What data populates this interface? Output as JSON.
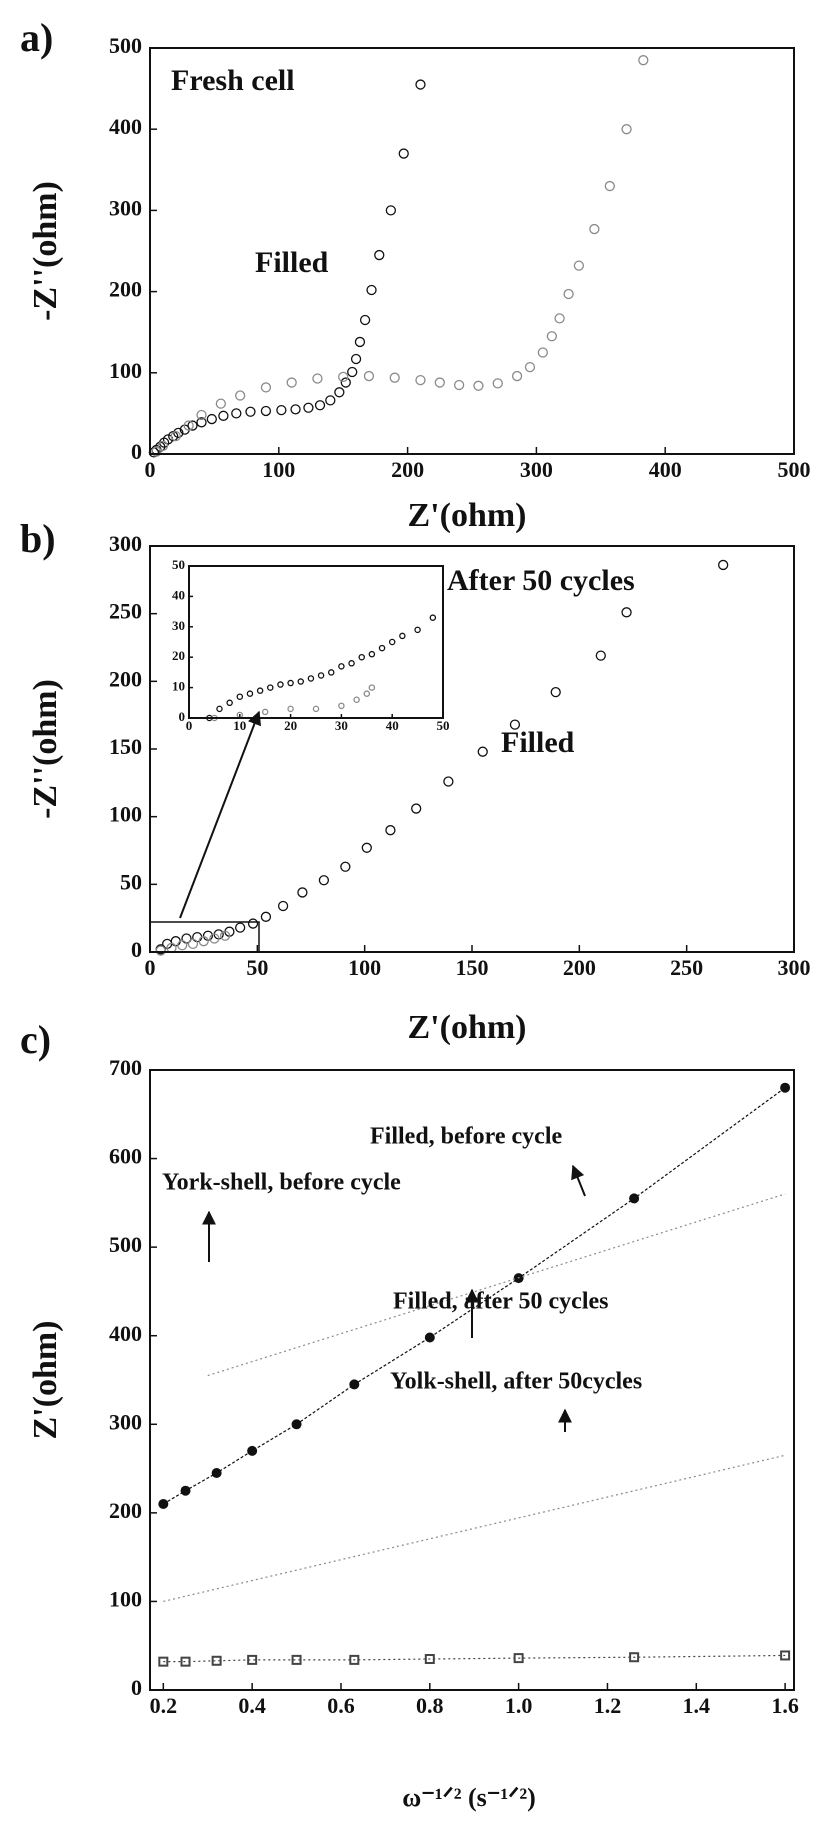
{
  "chart_data": [
    {
      "type": "scatter",
      "panel_label": "a)",
      "x_label": "Z'(ohm)",
      "y_label": "-Z''(ohm)",
      "annotations": [
        "Fresh cell"
      ],
      "xlim": [
        0,
        500
      ],
      "ylim": [
        0,
        500
      ],
      "xticks": [
        0,
        100,
        200,
        300,
        400,
        500
      ],
      "yticks": [
        0,
        100,
        200,
        300,
        400,
        500
      ],
      "series": [
        {
          "name": "Filled",
          "color": "#111111",
          "marker": "circle",
          "x": [
            3,
            5,
            8,
            11,
            14,
            18,
            22,
            27,
            33,
            40,
            48,
            57,
            67,
            78,
            90,
            102,
            113,
            123,
            132,
            140,
            147,
            152,
            157,
            160,
            163,
            167,
            172,
            178,
            187,
            197,
            210
          ],
          "values": [
            2,
            5,
            9,
            14,
            18,
            22,
            26,
            30,
            35,
            39,
            43,
            47,
            50,
            52,
            53,
            54,
            55,
            57,
            60,
            66,
            76,
            88,
            101,
            117,
            138,
            165,
            202,
            245,
            300,
            370,
            455
          ]
        },
        {
          "color": "#8a8a8a",
          "marker": "circle",
          "x": [
            5,
            10,
            20,
            30,
            40,
            55,
            70,
            90,
            110,
            130,
            150,
            170,
            190,
            210,
            225,
            240,
            255,
            270,
            285,
            295,
            305,
            312,
            318,
            325,
            333,
            345,
            357,
            370,
            383
          ],
          "values": [
            3,
            10,
            22,
            35,
            48,
            62,
            72,
            82,
            88,
            93,
            95,
            96,
            94,
            91,
            88,
            85,
            84,
            87,
            96,
            107,
            125,
            145,
            167,
            197,
            232,
            277,
            330,
            400,
            485
          ]
        }
      ]
    },
    {
      "type": "scatter",
      "panel_label": "b)",
      "x_label": "Z'(ohm)",
      "y_label": "-Z''(ohm)",
      "annotations": [
        "After 50 cycles"
      ],
      "xlim": [
        0,
        300
      ],
      "ylim": [
        0,
        300
      ],
      "xticks": [
        0,
        50,
        100,
        150,
        200,
        250,
        300
      ],
      "yticks": [
        0,
        50,
        100,
        150,
        200,
        250,
        300
      ],
      "series": [
        {
          "name": "Filled",
          "color": "#111111",
          "marker": "circle",
          "x": [
            5,
            8,
            12,
            17,
            22,
            27,
            32,
            37,
            42,
            48,
            54,
            62,
            71,
            81,
            91,
            101,
            112,
            124,
            139,
            155,
            170,
            189,
            210,
            222,
            267
          ],
          "values": [
            2,
            6,
            8,
            10,
            11,
            12,
            13,
            15,
            18,
            21,
            26,
            34,
            44,
            53,
            63,
            77,
            90,
            106,
            126,
            148,
            168,
            192,
            219,
            251,
            286
          ]
        },
        {
          "color": "#8a8a8a",
          "marker": "circle",
          "x": [
            5,
            10,
            15,
            20,
            25,
            30,
            35
          ],
          "values": [
            1,
            3,
            5,
            6,
            8,
            10,
            12
          ]
        }
      ]
    },
    {
      "type": "scatter",
      "xlim": [
        0,
        50
      ],
      "ylim": [
        0,
        50
      ],
      "xticks": [
        0,
        10,
        20,
        30,
        40,
        50
      ],
      "yticks": [
        0,
        10,
        20,
        30,
        40,
        50
      ],
      "series": [
        {
          "color": "#111111",
          "marker": "circle",
          "x": [
            4,
            6,
            8,
            10,
            12,
            14,
            16,
            18,
            20,
            22,
            24,
            26,
            28,
            30,
            32,
            34,
            36,
            38,
            40,
            42,
            45,
            48
          ],
          "values": [
            0,
            3,
            5,
            7,
            8,
            9,
            10,
            11,
            11.5,
            12,
            13,
            14,
            15,
            17,
            18,
            20,
            21,
            23,
            25,
            27,
            29,
            33
          ]
        },
        {
          "color": "#8a8a8a",
          "marker": "circle",
          "x": [
            5,
            10,
            15,
            20,
            25,
            30,
            33,
            35,
            36
          ],
          "values": [
            0,
            1,
            2,
            3,
            3,
            4,
            6,
            8,
            10
          ]
        }
      ]
    },
    {
      "type": "scatter",
      "panel_label": "c)",
      "x_label": "ω⁻¹ᐟ² (s⁻¹ᐟ²)",
      "y_label": "Z'(ohm)",
      "xlim": [
        0.17,
        1.62
      ],
      "ylim": [
        0,
        700
      ],
      "xticks": [
        0.2,
        0.4,
        0.6,
        0.8,
        {
          "value": 1,
          "label": "1.0"
        },
        1.2,
        1.4,
        1.6
      ],
      "yticks": [
        0,
        100,
        200,
        300,
        400,
        500,
        600,
        700
      ],
      "series": [
        {
          "name": "Filled, before cycle",
          "color": "#111111",
          "marker": "dot",
          "line": true,
          "x": [
            0.2,
            0.25,
            0.32,
            0.4,
            0.5,
            0.63,
            0.8,
            1.0,
            1.26,
            1.6
          ],
          "values": [
            210,
            225,
            245,
            270,
            300,
            345,
            398,
            465,
            555,
            680
          ]
        },
        {
          "name": "York-shell, before cycle",
          "color": "#8a8a8a",
          "marker": "none",
          "line": true,
          "x": [
            0.3,
            1.6
          ],
          "values": [
            355,
            560
          ]
        },
        {
          "name": "Filled, after 50 cycles",
          "color": "#8a8a8a",
          "marker": "none",
          "line": true,
          "x": [
            0.2,
            1.6
          ],
          "values": [
            100,
            265
          ]
        },
        {
          "name": "Yolk-shell, after 50cycles",
          "color": "#444444",
          "marker": "square",
          "line": true,
          "x": [
            0.2,
            0.25,
            0.32,
            0.4,
            0.5,
            0.63,
            0.8,
            1.0,
            1.26,
            1.6
          ],
          "values": [
            32,
            32,
            33,
            34,
            34,
            34,
            35,
            36,
            37,
            39
          ]
        }
      ]
    }
  ]
}
